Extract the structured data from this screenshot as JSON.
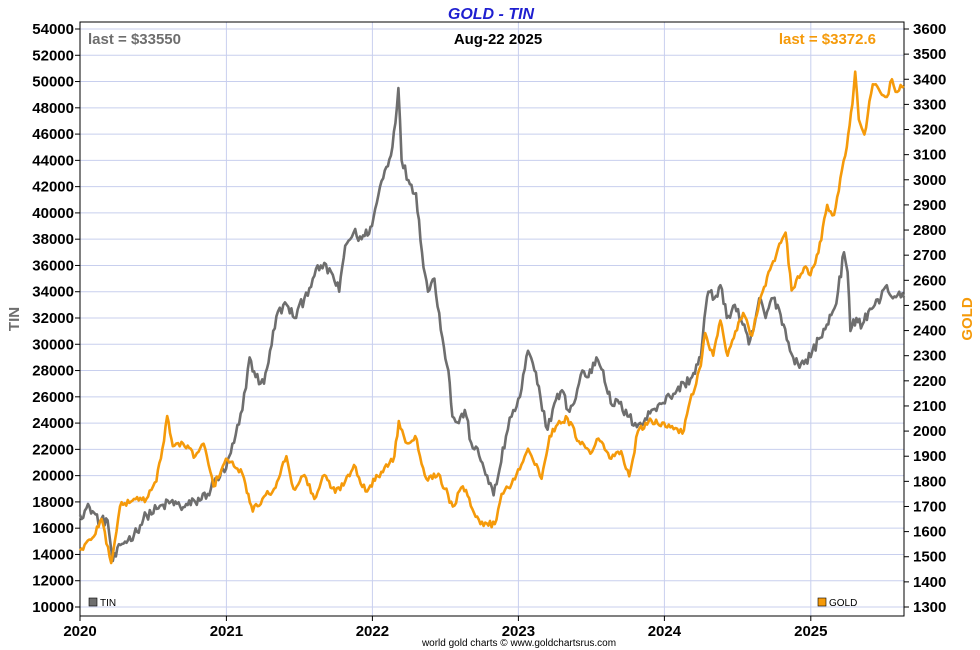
{
  "colors": {
    "tin": "#6e6e6e",
    "gold": "#f59a0a",
    "title": "#1f1fd0",
    "grid": "#c8cfee"
  },
  "header": {
    "title": "GOLD - TIN",
    "date": "Aug-22  2025",
    "last_tin": "last = $33550",
    "last_gold": "last = $3372.6"
  },
  "footer": "world gold charts © www.goldchartsrus.com",
  "chart_data": {
    "type": "line",
    "title": "GOLD - TIN",
    "x_ticks": [
      "2020",
      "2021",
      "2022",
      "2023",
      "2024",
      "2025"
    ],
    "xlim": [
      "2020-01-01",
      "2025-08-22"
    ],
    "y_left": {
      "label": "TIN",
      "range": [
        10000,
        54000
      ],
      "ticks": [
        "10000",
        "12000",
        "14000",
        "16000",
        "18000",
        "20000",
        "22000",
        "24000",
        "26000",
        "28000",
        "30000",
        "32000",
        "34000",
        "36000",
        "38000",
        "40000",
        "42000",
        "44000",
        "46000",
        "48000",
        "50000",
        "52000",
        "54000"
      ]
    },
    "y_right": {
      "label": "GOLD",
      "range": [
        1300,
        3600
      ],
      "ticks": [
        "1300",
        "1400",
        "1500",
        "1600",
        "1700",
        "1800",
        "1900",
        "2000",
        "2100",
        "2200",
        "2300",
        "2400",
        "2500",
        "2600",
        "2700",
        "2800",
        "2900",
        "3000",
        "3100",
        "3200",
        "3300",
        "3400",
        "3500",
        "3600"
      ]
    },
    "grid": true,
    "series": [
      {
        "name": "TIN",
        "axis": "left",
        "points": [
          [
            "2020-01-01",
            17000
          ],
          [
            "2020-01-25",
            17600
          ],
          [
            "2020-02-20",
            16500
          ],
          [
            "2020-03-10",
            16600
          ],
          [
            "2020-03-23",
            13500
          ],
          [
            "2020-04-15",
            14800
          ],
          [
            "2020-05-15",
            15500
          ],
          [
            "2020-06-15",
            17000
          ],
          [
            "2020-07-15",
            17500
          ],
          [
            "2020-08-15",
            18000
          ],
          [
            "2020-09-15",
            17600
          ],
          [
            "2020-10-15",
            18000
          ],
          [
            "2020-11-15",
            18600
          ],
          [
            "2020-12-01",
            19500
          ],
          [
            "2020-12-31",
            20500
          ],
          [
            "2021-01-20",
            22500
          ],
          [
            "2021-02-10",
            25000
          ],
          [
            "2021-02-28",
            29000
          ],
          [
            "2021-03-15",
            27500
          ],
          [
            "2021-04-05",
            27000
          ],
          [
            "2021-04-20",
            29500
          ],
          [
            "2021-05-10",
            32500
          ],
          [
            "2021-06-01",
            33000
          ],
          [
            "2021-06-20",
            32000
          ],
          [
            "2021-07-15",
            33500
          ],
          [
            "2021-08-05",
            35000
          ],
          [
            "2021-08-25",
            36000
          ],
          [
            "2021-09-20",
            35500
          ],
          [
            "2021-10-10",
            34000
          ],
          [
            "2021-10-25",
            37500
          ],
          [
            "2021-11-15",
            38500
          ],
          [
            "2021-12-05",
            38000
          ],
          [
            "2021-12-31",
            39000
          ],
          [
            "2022-01-20",
            42000
          ],
          [
            "2022-02-05",
            43500
          ],
          [
            "2022-02-20",
            45000
          ],
          [
            "2022-03-07",
            49500
          ],
          [
            "2022-03-15",
            44000
          ],
          [
            "2022-04-01",
            42500
          ],
          [
            "2022-04-20",
            41500
          ],
          [
            "2022-05-05",
            37000
          ],
          [
            "2022-05-20",
            34000
          ],
          [
            "2022-06-05",
            35000
          ],
          [
            "2022-06-25",
            30500
          ],
          [
            "2022-07-10",
            28000
          ],
          [
            "2022-07-20",
            24500
          ],
          [
            "2022-08-05",
            24000
          ],
          [
            "2022-08-20",
            25000
          ],
          [
            "2022-09-05",
            22500
          ],
          [
            "2022-09-25",
            21500
          ],
          [
            "2022-10-15",
            20000
          ],
          [
            "2022-10-31",
            18500
          ],
          [
            "2022-11-15",
            20500
          ],
          [
            "2022-12-01",
            23000
          ],
          [
            "2022-12-15",
            24500
          ],
          [
            "2023-01-05",
            26000
          ],
          [
            "2023-01-25",
            29500
          ],
          [
            "2023-02-10",
            28000
          ],
          [
            "2023-02-25",
            26000
          ],
          [
            "2023-03-15",
            23500
          ],
          [
            "2023-04-01",
            25500
          ],
          [
            "2023-04-20",
            26500
          ],
          [
            "2023-05-05",
            25000
          ],
          [
            "2023-05-20",
            25500
          ],
          [
            "2023-06-10",
            28000
          ],
          [
            "2023-06-25",
            27500
          ],
          [
            "2023-07-15",
            29000
          ],
          [
            "2023-08-01",
            28000
          ],
          [
            "2023-08-20",
            25500
          ],
          [
            "2023-09-10",
            25500
          ],
          [
            "2023-10-01",
            24500
          ],
          [
            "2023-10-20",
            24000
          ],
          [
            "2023-11-10",
            24000
          ],
          [
            "2023-11-30",
            25000
          ],
          [
            "2023-12-20",
            25500
          ],
          [
            "2024-01-15",
            26000
          ],
          [
            "2024-02-01",
            26500
          ],
          [
            "2024-02-20",
            27000
          ],
          [
            "2024-03-10",
            27500
          ],
          [
            "2024-04-01",
            29000
          ],
          [
            "2024-04-10",
            32000
          ],
          [
            "2024-04-20",
            34000
          ],
          [
            "2024-05-05",
            33500
          ],
          [
            "2024-05-20",
            34500
          ],
          [
            "2024-06-05",
            32000
          ],
          [
            "2024-06-25",
            33000
          ],
          [
            "2024-07-15",
            31500
          ],
          [
            "2024-07-30",
            30000
          ],
          [
            "2024-08-10",
            31000
          ],
          [
            "2024-08-25",
            33500
          ],
          [
            "2024-09-10",
            32000
          ],
          [
            "2024-09-25",
            33500
          ],
          [
            "2024-10-10",
            33000
          ],
          [
            "2024-10-25",
            31500
          ],
          [
            "2024-11-10",
            29500
          ],
          [
            "2024-11-30",
            28500
          ],
          [
            "2024-12-15",
            28500
          ],
          [
            "2025-01-05",
            29500
          ],
          [
            "2025-01-25",
            30500
          ],
          [
            "2025-02-10",
            31500
          ],
          [
            "2025-02-25",
            32500
          ],
          [
            "2025-03-10",
            34000
          ],
          [
            "2025-03-25",
            37000
          ],
          [
            "2025-04-03",
            35500
          ],
          [
            "2025-04-10",
            31000
          ],
          [
            "2025-04-25",
            32000
          ],
          [
            "2025-05-10",
            31500
          ],
          [
            "2025-05-25",
            32500
          ],
          [
            "2025-06-10",
            33000
          ],
          [
            "2025-06-25",
            33500
          ],
          [
            "2025-07-10",
            34500
          ],
          [
            "2025-07-25",
            33500
          ],
          [
            "2025-08-10",
            34000
          ],
          [
            "2025-08-22",
            33550
          ]
        ]
      },
      {
        "name": "GOLD",
        "axis": "right",
        "points": [
          [
            "2020-01-01",
            1525
          ],
          [
            "2020-02-01",
            1575
          ],
          [
            "2020-02-24",
            1650
          ],
          [
            "2020-03-19",
            1475
          ],
          [
            "2020-04-10",
            1700
          ],
          [
            "2020-05-15",
            1730
          ],
          [
            "2020-06-15",
            1730
          ],
          [
            "2020-07-10",
            1800
          ],
          [
            "2020-07-25",
            1930
          ],
          [
            "2020-08-06",
            2060
          ],
          [
            "2020-08-20",
            1940
          ],
          [
            "2020-09-15",
            1950
          ],
          [
            "2020-10-15",
            1900
          ],
          [
            "2020-11-05",
            1950
          ],
          [
            "2020-11-30",
            1780
          ],
          [
            "2020-12-31",
            1890
          ],
          [
            "2021-01-20",
            1860
          ],
          [
            "2021-02-10",
            1830
          ],
          [
            "2021-03-08",
            1680
          ],
          [
            "2021-04-01",
            1730
          ],
          [
            "2021-04-30",
            1770
          ],
          [
            "2021-05-31",
            1900
          ],
          [
            "2021-06-18",
            1770
          ],
          [
            "2021-07-15",
            1825
          ],
          [
            "2021-08-09",
            1730
          ],
          [
            "2021-09-03",
            1825
          ],
          [
            "2021-09-30",
            1755
          ],
          [
            "2021-10-25",
            1800
          ],
          [
            "2021-11-16",
            1865
          ],
          [
            "2021-12-15",
            1760
          ],
          [
            "2022-01-15",
            1820
          ],
          [
            "2022-02-25",
            1900
          ],
          [
            "2022-03-08",
            2040
          ],
          [
            "2022-03-25",
            1955
          ],
          [
            "2022-04-18",
            1980
          ],
          [
            "2022-05-16",
            1810
          ],
          [
            "2022-06-15",
            1830
          ],
          [
            "2022-07-21",
            1700
          ],
          [
            "2022-08-15",
            1780
          ],
          [
            "2022-09-28",
            1630
          ],
          [
            "2022-11-03",
            1630
          ],
          [
            "2022-11-20",
            1750
          ],
          [
            "2022-12-15",
            1790
          ],
          [
            "2023-01-25",
            1930
          ],
          [
            "2023-02-28",
            1810
          ],
          [
            "2023-03-20",
            1980
          ],
          [
            "2023-04-13",
            2040
          ],
          [
            "2023-05-04",
            2050
          ],
          [
            "2023-06-01",
            1960
          ],
          [
            "2023-06-30",
            1910
          ],
          [
            "2023-07-20",
            1970
          ],
          [
            "2023-08-21",
            1890
          ],
          [
            "2023-09-15",
            1920
          ],
          [
            "2023-10-05",
            1820
          ],
          [
            "2023-10-27",
            2000
          ],
          [
            "2023-11-30",
            2040
          ],
          [
            "2023-12-15",
            2030
          ],
          [
            "2024-01-20",
            2020
          ],
          [
            "2024-02-15",
            1990
          ],
          [
            "2024-03-05",
            2120
          ],
          [
            "2024-04-01",
            2260
          ],
          [
            "2024-04-12",
            2390
          ],
          [
            "2024-05-02",
            2300
          ],
          [
            "2024-05-20",
            2440
          ],
          [
            "2024-06-07",
            2300
          ],
          [
            "2024-07-16",
            2470
          ],
          [
            "2024-08-07",
            2380
          ],
          [
            "2024-08-26",
            2520
          ],
          [
            "2024-09-25",
            2660
          ],
          [
            "2024-10-30",
            2790
          ],
          [
            "2024-11-14",
            2560
          ],
          [
            "2024-12-15",
            2650
          ],
          [
            "2024-12-31",
            2620
          ],
          [
            "2025-01-20",
            2710
          ],
          [
            "2025-02-11",
            2900
          ],
          [
            "2025-02-28",
            2860
          ],
          [
            "2025-03-20",
            3040
          ],
          [
            "2025-04-01",
            3130
          ],
          [
            "2025-04-15",
            3300
          ],
          [
            "2025-04-22",
            3430
          ],
          [
            "2025-05-01",
            3240
          ],
          [
            "2025-05-15",
            3180
          ],
          [
            "2025-06-05",
            3380
          ],
          [
            "2025-06-20",
            3360
          ],
          [
            "2025-07-10",
            3330
          ],
          [
            "2025-07-23",
            3400
          ],
          [
            "2025-08-01",
            3350
          ],
          [
            "2025-08-22",
            3372.6
          ]
        ]
      }
    ]
  }
}
